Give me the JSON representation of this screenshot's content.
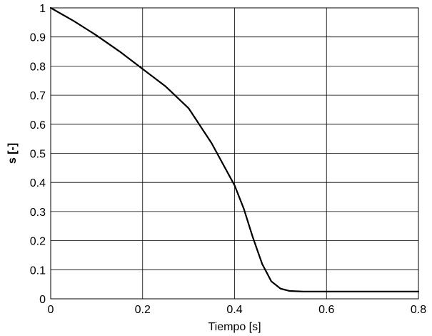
{
  "chart_data": {
    "type": "line",
    "title": "",
    "xlabel": "Tiempo [s]",
    "ylabel": "s [-]",
    "xlim": [
      0,
      0.8
    ],
    "ylim": [
      0,
      1
    ],
    "xticks": [
      0,
      0.2,
      0.4,
      0.6,
      0.8
    ],
    "yticks": [
      0,
      0.1,
      0.2,
      0.3,
      0.4,
      0.5,
      0.6,
      0.7,
      0.8,
      0.9,
      1
    ],
    "xtick_labels": [
      "0",
      "0.2",
      "0.4",
      "0.6",
      "0.8"
    ],
    "ytick_labels": [
      "0",
      "0.1",
      "0.2",
      "0.3",
      "0.4",
      "0.5",
      "0.6",
      "0.7",
      "0.8",
      "0.9",
      "1"
    ],
    "grid": true,
    "series_colors": [
      "#000000"
    ],
    "series": [
      {
        "x": [
          0,
          0.05,
          0.1,
          0.15,
          0.2,
          0.25,
          0.3,
          0.35,
          0.4,
          0.42,
          0.44,
          0.46,
          0.48,
          0.5,
          0.52,
          0.55,
          0.6,
          0.7,
          0.8
        ],
        "y": [
          1,
          0.955,
          0.905,
          0.85,
          0.79,
          0.73,
          0.655,
          0.535,
          0.39,
          0.31,
          0.21,
          0.12,
          0.06,
          0.035,
          0.027,
          0.025,
          0.025,
          0.025,
          0.025
        ]
      }
    ]
  }
}
